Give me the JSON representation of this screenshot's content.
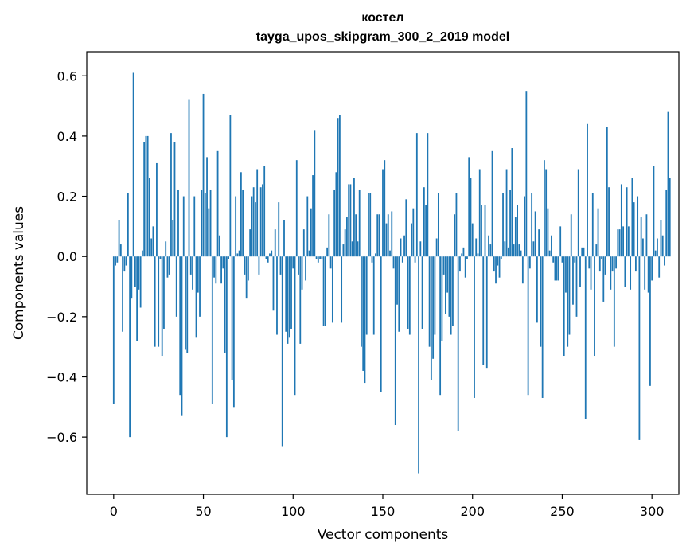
{
  "chart_data": {
    "type": "bar",
    "title": "костел",
    "subtitle": "tayga_upos_skipgram_300_2_2019 model",
    "xlabel": "Vector components",
    "ylabel": "Components values",
    "xlim": [
      -15,
      315
    ],
    "ylim": [
      -0.79,
      0.68
    ],
    "xticks": [
      0,
      50,
      100,
      150,
      200,
      250,
      300
    ],
    "xtick_labels": [
      "0",
      "50",
      "100",
      "150",
      "200",
      "250",
      "300"
    ],
    "yticks": [
      -0.6,
      -0.4,
      -0.2,
      0.0,
      0.2,
      0.4,
      0.6
    ],
    "ytick_labels": [
      "−0.6",
      "−0.4",
      "−0.2",
      "0.0",
      "0.2",
      "0.4",
      "0.6"
    ],
    "color": "#1f77b4",
    "grid": false,
    "values": [
      -0.49,
      -0.03,
      -0.02,
      0.12,
      0.04,
      -0.25,
      -0.05,
      -0.03,
      0.21,
      -0.6,
      -0.14,
      0.61,
      -0.1,
      -0.28,
      -0.11,
      -0.17,
      0.02,
      0.38,
      0.4,
      0.4,
      0.26,
      0.06,
      0.1,
      -0.3,
      0.31,
      -0.3,
      -0.01,
      -0.33,
      -0.24,
      0.05,
      -0.07,
      -0.06,
      0.41,
      0.12,
      0.38,
      -0.2,
      0.22,
      -0.46,
      -0.53,
      0.2,
      -0.31,
      -0.32,
      0.52,
      -0.06,
      -0.11,
      0.2,
      -0.27,
      -0.12,
      -0.2,
      0.22,
      0.54,
      0.21,
      0.33,
      0.16,
      0.22,
      -0.49,
      -0.07,
      -0.09,
      0.35,
      0.07,
      -0.09,
      -0.04,
      -0.32,
      -0.6,
      -0.01,
      0.47,
      -0.41,
      -0.5,
      0.2,
      0.01,
      0.02,
      0.28,
      0.22,
      -0.06,
      -0.14,
      -0.08,
      0.09,
      0.2,
      0.23,
      0.18,
      0.29,
      -0.06,
      0.23,
      0.24,
      0.3,
      -0.01,
      -0.02,
      0.01,
      0.02,
      -0.18,
      0.09,
      -0.26,
      0.18,
      -0.06,
      -0.63,
      0.12,
      -0.25,
      -0.29,
      -0.27,
      -0.24,
      -0.04,
      -0.46,
      0.32,
      -0.06,
      -0.29,
      -0.11,
      0.09,
      -0.08,
      0.2,
      0.02,
      0.16,
      0.27,
      0.42,
      -0.01,
      -0.02,
      -0.01,
      -0.01,
      -0.23,
      -0.23,
      0.03,
      0.14,
      -0.04,
      -0.22,
      0.22,
      0.28,
      0.46,
      0.47,
      -0.22,
      0.04,
      0.09,
      0.13,
      0.24,
      0.24,
      0.05,
      0.26,
      0.14,
      0.05,
      0.22,
      -0.3,
      -0.38,
      -0.42,
      -0.26,
      0.21,
      0.21,
      -0.02,
      -0.26,
      0.01,
      0.14,
      0.14,
      -0.45,
      0.29,
      0.32,
      0.11,
      0.14,
      0.02,
      0.15,
      -0.04,
      -0.56,
      -0.16,
      -0.25,
      0.06,
      -0.02,
      0.07,
      0.19,
      -0.24,
      -0.26,
      0.11,
      0.16,
      -0.02,
      0.41,
      -0.72,
      0.05,
      -0.24,
      0.23,
      0.17,
      0.41,
      -0.3,
      -0.41,
      -0.34,
      -0.26,
      0.06,
      0.21,
      -0.46,
      -0.28,
      -0.06,
      -0.19,
      -0.12,
      -0.2,
      -0.26,
      -0.23,
      0.14,
      0.21,
      -0.58,
      -0.05,
      0.01,
      0.03,
      -0.07,
      -0.01,
      0.33,
      0.26,
      0.11,
      -0.47,
      0.06,
      0.01,
      0.29,
      0.17,
      -0.36,
      0.17,
      -0.37,
      0.07,
      0.04,
      0.35,
      -0.05,
      -0.09,
      -0.03,
      -0.07,
      -0.01,
      0.21,
      0.05,
      0.29,
      0.03,
      0.22,
      0.36,
      0.04,
      0.13,
      0.17,
      0.04,
      0.02,
      -0.09,
      0.2,
      0.55,
      -0.46,
      -0.04,
      0.21,
      0.05,
      0.15,
      -0.22,
      0.09,
      -0.3,
      -0.47,
      0.32,
      0.29,
      0.16,
      0.02,
      0.07,
      -0.02,
      -0.08,
      -0.08,
      -0.08,
      0.1,
      -0.02,
      -0.33,
      -0.12,
      -0.3,
      -0.26,
      0.14,
      -0.16,
      -0.02,
      -0.2,
      0.29,
      -0.1,
      0.03,
      0.03,
      -0.54,
      0.44,
      -0.04,
      -0.11,
      0.21,
      -0.33,
      0.04,
      0.16,
      -0.05,
      -0.01,
      -0.15,
      -0.06,
      0.43,
      0.23,
      -0.11,
      -0.05,
      -0.3,
      -0.04,
      0.09,
      0.09,
      0.24,
      0.1,
      -0.1,
      0.23,
      0.1,
      -0.11,
      0.26,
      0.18,
      -0.05,
      0.2,
      -0.61,
      0.13,
      0.06,
      -0.11,
      0.14,
      -0.12,
      -0.43,
      -0.08,
      0.3,
      0.02,
      0.06,
      -0.07,
      0.12,
      0.07,
      -0.03,
      0.22,
      0.48,
      0.26
    ]
  }
}
